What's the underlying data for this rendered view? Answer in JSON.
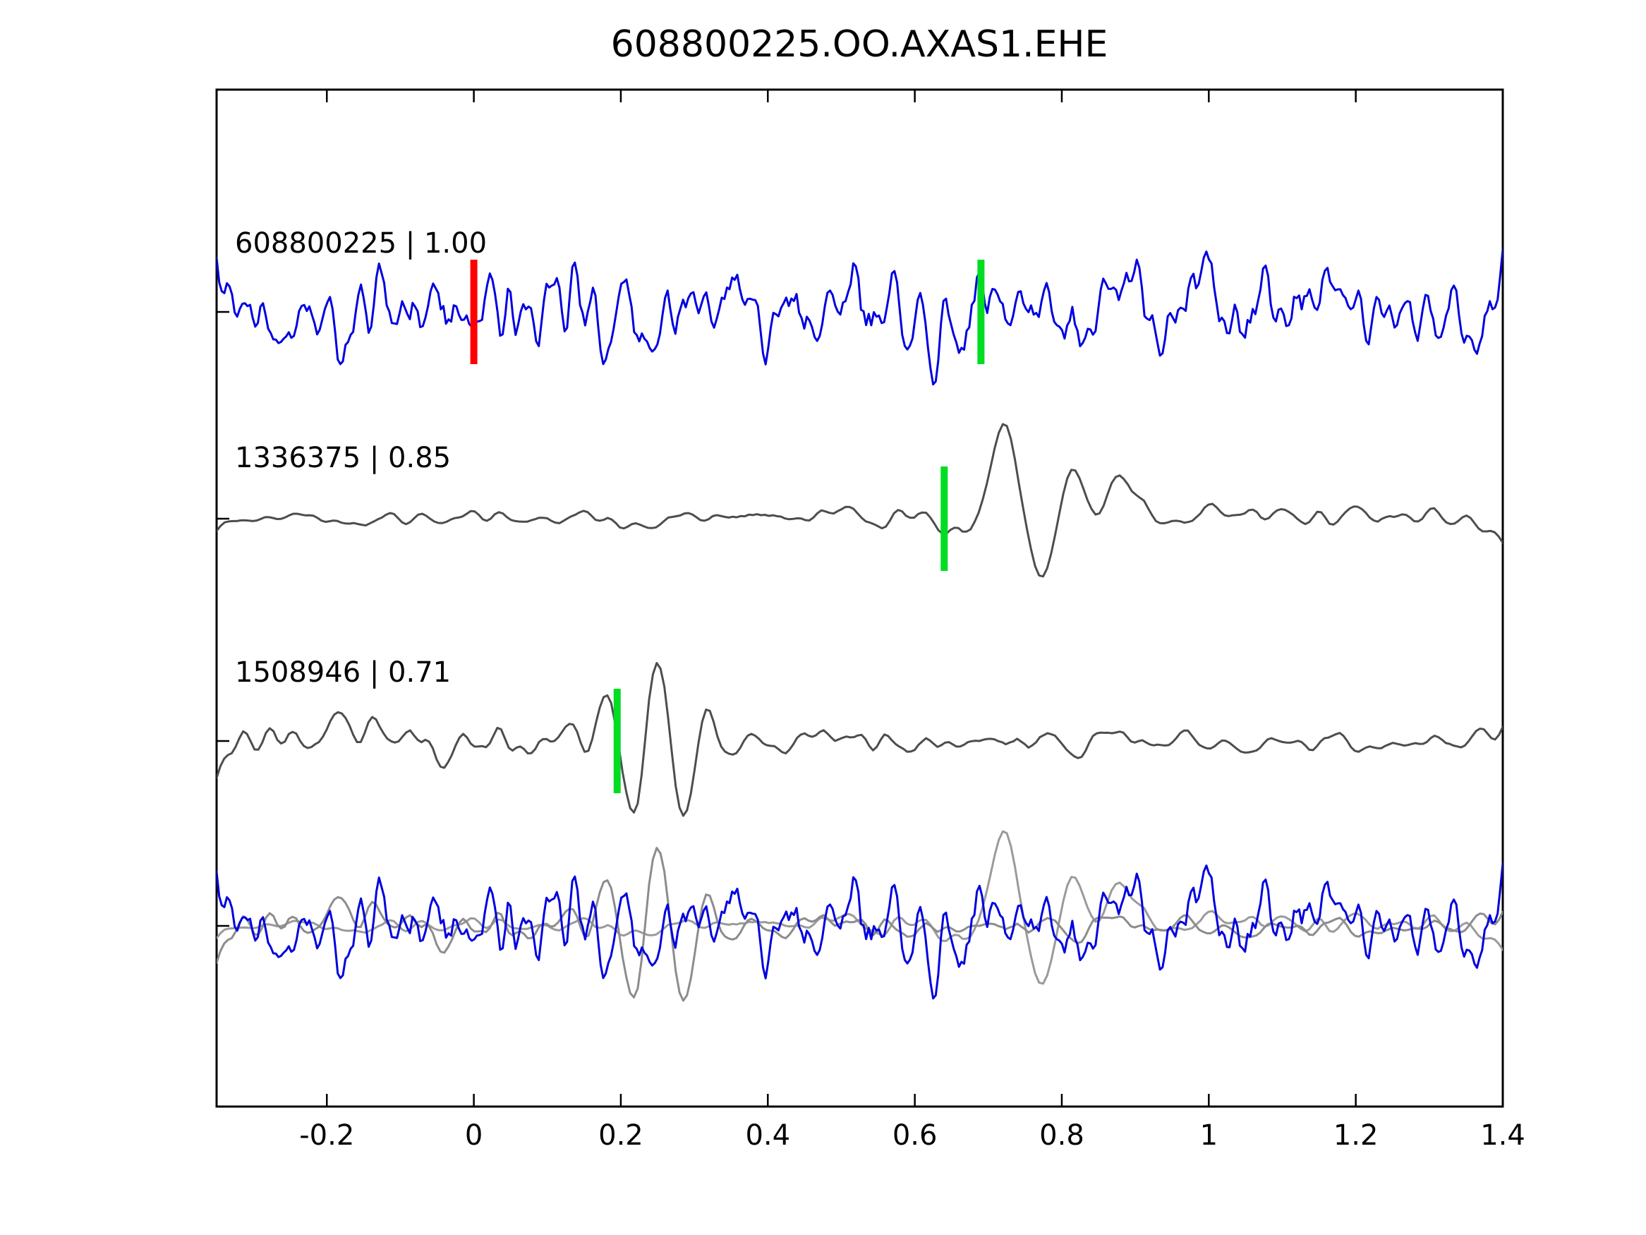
{
  "title": "608800225.OO.AXAS1.EHE",
  "colors": {
    "template": "#0000e0",
    "template_overlay": "#0000e0",
    "detection": "#4d4d4d",
    "overlay_gray_1": "#9a9a9a",
    "overlay_gray_2": "#8c8c8c",
    "marker_green": "#00dd22",
    "marker_red": "#ff0000",
    "axis": "#000000"
  },
  "chart_data": {
    "type": "line",
    "title": "608800225.OO.AXAS1.EHE",
    "xlabel": "",
    "ylabel": "",
    "grid": false,
    "legend": "none",
    "x_range": [
      -0.35,
      1.4
    ],
    "x_ticks": [
      {
        "value": -0.2,
        "label": "-0.2"
      },
      {
        "value": 0,
        "label": "0"
      },
      {
        "value": 0.2,
        "label": "0.2"
      },
      {
        "value": 0.4,
        "label": "0.4"
      },
      {
        "value": 0.6,
        "label": "0.6"
      },
      {
        "value": 0.8,
        "label": "0.8"
      },
      {
        "value": 1,
        "label": "1"
      },
      {
        "value": 1.2,
        "label": "1.2"
      },
      {
        "value": 1.4,
        "label": "1.4"
      }
    ],
    "traces": [
      {
        "id": "template",
        "event_id": "608800225",
        "cc": "1.00",
        "label": "608800225 | 1.00",
        "color_key": "template",
        "row": 0,
        "synth": {
          "seed": 41,
          "n": 500,
          "smooth": 2,
          "amp": 100,
          "envelope": [
            [
              -0.35,
              0.95
            ],
            [
              0.3,
              1.0
            ],
            [
              0.9,
              1.05
            ],
            [
              1.4,
              0.95
            ]
          ],
          "features": []
        },
        "markers": [
          {
            "x": 0.0,
            "color_key": "marker_red"
          },
          {
            "x": 0.69,
            "color_key": "marker_green"
          }
        ]
      },
      {
        "id": "det1",
        "event_id": "1336375",
        "cc": "0.85",
        "label": "1336375 | 0.85",
        "color_key": "detection",
        "row": 1,
        "synth": {
          "seed": 87,
          "n": 320,
          "smooth": 3,
          "amp": 40,
          "envelope": [
            [
              -0.35,
              0.45
            ],
            [
              0.05,
              0.6
            ],
            [
              0.45,
              0.85
            ],
            [
              0.62,
              0.95
            ],
            [
              0.8,
              1.0
            ],
            [
              1.4,
              0.85
            ]
          ],
          "features": [
            {
              "x0": 0.72,
              "sigma": 0.024,
              "lambda": 0.13,
              "amp": 152,
              "phase": 0
            },
            {
              "x0": 0.775,
              "sigma": 0.022,
              "lambda": 0.14,
              "amp": -70,
              "phase": 0
            },
            {
              "x0": 0.815,
              "sigma": 0.028,
              "lambda": 0.2,
              "amp": 58,
              "phase": 0
            },
            {
              "x0": 0.885,
              "sigma": 0.028,
              "lambda": 0.2,
              "amp": 62,
              "phase": 0
            }
          ]
        },
        "markers": [
          {
            "x": 0.64,
            "color_key": "marker_green"
          }
        ]
      },
      {
        "id": "det2",
        "event_id": "1508946",
        "cc": "0.71",
        "label": "1508946 | 0.71",
        "color_key": "detection",
        "row": 2,
        "synth": {
          "seed": 23,
          "n": 340,
          "smooth": 3,
          "amp": 55,
          "envelope": [
            [
              -0.35,
              0.95
            ],
            [
              0.1,
              0.85
            ],
            [
              0.4,
              0.6
            ],
            [
              0.8,
              0.55
            ],
            [
              1.4,
              0.5
            ]
          ],
          "features": [
            {
              "x0": 0.25,
              "sigma": 0.05,
              "lambda": 0.072,
              "amp": 135,
              "phase": 0
            }
          ]
        },
        "markers": [
          {
            "x": 0.195,
            "color_key": "marker_green"
          }
        ]
      }
    ],
    "overlay": {
      "row": 3,
      "components": [
        {
          "ref": "det1",
          "color_key": "overlay_gray_1"
        },
        {
          "ref": "det2",
          "color_key": "overlay_gray_2"
        },
        {
          "ref": "template",
          "color_key": "template_overlay"
        }
      ]
    }
  }
}
